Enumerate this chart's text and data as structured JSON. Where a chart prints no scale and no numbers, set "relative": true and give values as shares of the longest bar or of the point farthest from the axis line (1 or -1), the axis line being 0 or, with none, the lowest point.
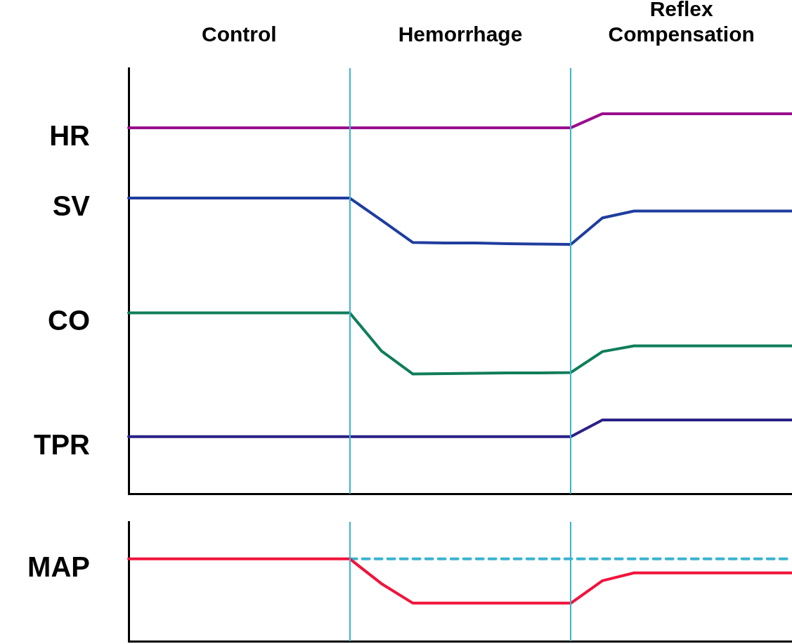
{
  "chart_data": [
    {
      "type": "line",
      "relative": true,
      "marker": "none",
      "tick_labels": false,
      "grid": false,
      "categories": [
        null,
        null,
        null,
        null,
        null,
        null,
        null,
        null,
        null,
        null,
        null,
        null,
        null,
        null,
        null,
        null,
        null,
        null,
        null,
        null,
        null,
        null
      ],
      "annotations": [
        "Control",
        "Hemorrhage",
        "Reflex Compensation"
      ],
      "series": [
        {
          "name": "HR",
          "color": "#990f8c",
          "values": [
            0.963,
            0.963,
            0.963,
            0.963,
            0.963,
            0.963,
            0.963,
            0.963,
            0.963,
            0.963,
            0.963,
            0.963,
            0.963,
            0.963,
            0.963,
            1,
            1,
            1,
            1,
            1,
            1,
            1
          ]
        },
        {
          "name": "SV",
          "color": "#1f3d9e",
          "values": [
            0.778,
            0.778,
            0.778,
            0.778,
            0.778,
            0.778,
            0.778,
            0.778,
            0.72,
            0.661,
            0.66,
            0.66,
            0.658,
            0.657,
            0.656,
            0.726,
            0.744,
            0.744,
            0.744,
            0.744,
            0.744,
            0.744
          ]
        },
        {
          "name": "CO",
          "color": "#0f7d5a",
          "values": [
            0.476,
            0.476,
            0.476,
            0.476,
            0.476,
            0.476,
            0.476,
            0.476,
            0.376,
            0.315,
            0.316,
            0.317,
            0.318,
            0.318,
            0.319,
            0.374,
            0.389,
            0.389,
            0.389,
            0.389,
            0.389,
            0.389
          ]
        },
        {
          "name": "TPR",
          "color": "#2a2188",
          "values": [
            0.15,
            0.15,
            0.15,
            0.15,
            0.15,
            0.15,
            0.15,
            0.15,
            0.15,
            0.15,
            0.15,
            0.15,
            0.15,
            0.15,
            0.15,
            0.194,
            0.194,
            0.194,
            0.194,
            0.194,
            0.194,
            0.194
          ]
        }
      ]
    },
    {
      "type": "line",
      "relative": true,
      "marker": "none",
      "tick_labels": false,
      "grid": false,
      "categories": [
        null,
        null,
        null,
        null,
        null,
        null,
        null,
        null,
        null,
        null,
        null,
        null,
        null,
        null,
        null,
        null,
        null,
        null,
        null,
        null,
        null,
        null
      ],
      "series": [
        {
          "name": "MAP",
          "color": "#f0143c",
          "values": [
            1,
            1,
            1,
            1,
            1,
            1,
            1,
            1,
            0.7,
            0.462,
            0.462,
            0.462,
            0.462,
            0.462,
            0.462,
            0.735,
            0.829,
            0.829,
            0.829,
            0.829,
            0.829,
            0.829
          ]
        },
        {
          "color": "#3bb3d0",
          "line_style": "dashed",
          "values": [
            null,
            null,
            null,
            null,
            null,
            null,
            null,
            1,
            1,
            1,
            1,
            1,
            1,
            1,
            1,
            1,
            1,
            1,
            1,
            1,
            1,
            1
          ]
        }
      ]
    }
  ]
}
